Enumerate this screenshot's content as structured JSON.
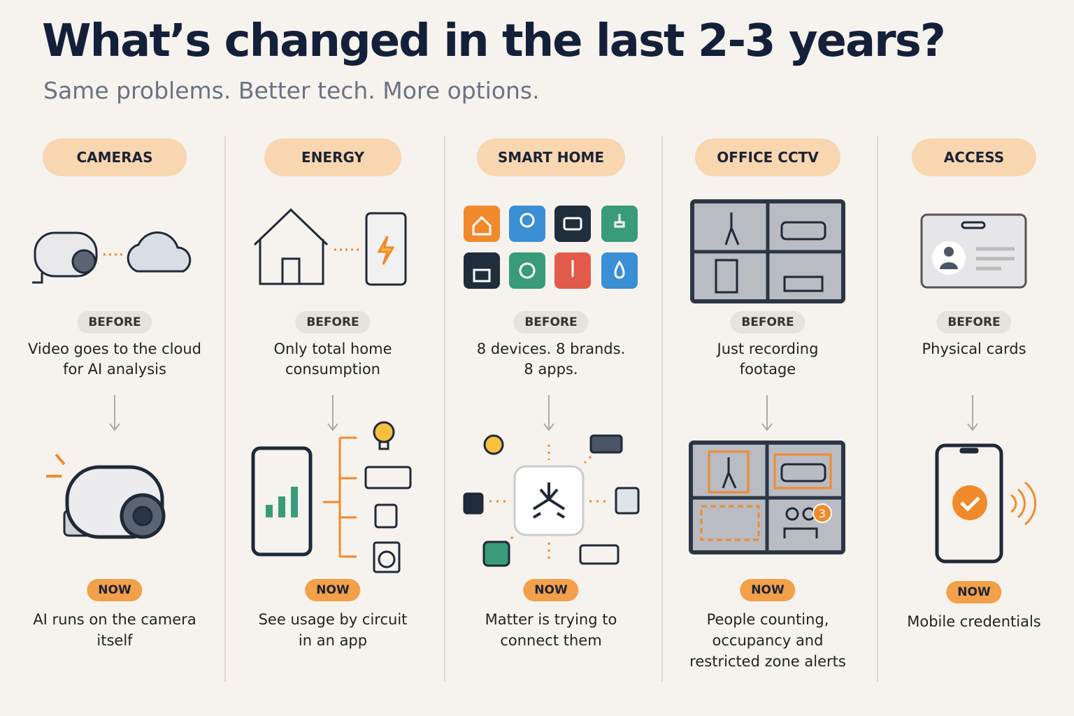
{
  "header": {
    "title": "What’s changed in the last 2-3 years?",
    "subtitle": "Same problems. Better tech. More options."
  },
  "columns": [
    {
      "category": "CAMERAS",
      "before_label": "BEFORE",
      "before": "Video goes to the cloud for AI analysis",
      "now_label": "NOW",
      "now": "AI runs on the camera itself"
    },
    {
      "category": "ENERGY",
      "before_label": "BEFORE",
      "before": "Only total home consumption",
      "now_label": "NOW",
      "now": "See usage by circuit in an app"
    },
    {
      "category": "SMART HOME",
      "before_label": "BEFORE",
      "before": "8 devices. 8 brands. 8 apps.",
      "now_label": "NOW",
      "now": "Matter is trying to connect them"
    },
    {
      "category": "OFFICE CCTV",
      "before_label": "BEFORE",
      "before": "Just recording footage",
      "now_label": "NOW",
      "now": "People counting, occupancy and restricted zone alerts",
      "badge": "3"
    },
    {
      "category": "ACCESS",
      "before_label": "BEFORE",
      "before": "Physical cards",
      "now_label": "NOW",
      "now": "Mobile credentials"
    }
  ]
}
